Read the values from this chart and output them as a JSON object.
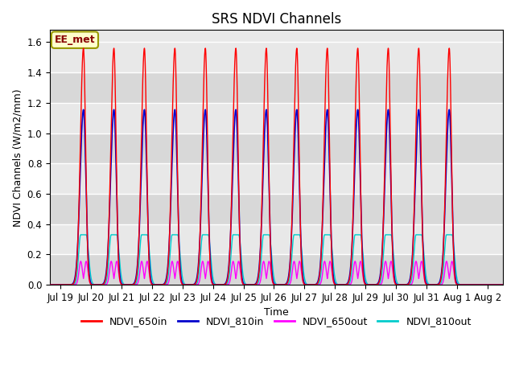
{
  "title": "SRS NDVI Channels",
  "ylabel": "NDVI Channels (W/m2/mm)",
  "xlabel": "Time",
  "ylim": [
    0.0,
    1.68
  ],
  "yticks": [
    0.0,
    0.2,
    0.4,
    0.6,
    0.8,
    1.0,
    1.2,
    1.4,
    1.6
  ],
  "colors": {
    "NDVI_650in": "#ff0000",
    "NDVI_810in": "#0000cc",
    "NDVI_650out": "#ff00ff",
    "NDVI_810out": "#00cccc"
  },
  "bg_color": "#e8e8e8",
  "annotation_text": "EE_met",
  "annotation_bg": "#ffffcc",
  "annotation_border": "#999900",
  "legend_labels": [
    "NDVI_650in",
    "NDVI_810in",
    "NDVI_650out",
    "NDVI_810out"
  ],
  "peak_650in": 1.56,
  "peak_810in": 1.155,
  "peak_650out": 0.155,
  "peak_810out": 0.33,
  "num_cycles": 13,
  "title_fontsize": 12,
  "tick_fontsize": 8.5,
  "label_fontsize": 9
}
